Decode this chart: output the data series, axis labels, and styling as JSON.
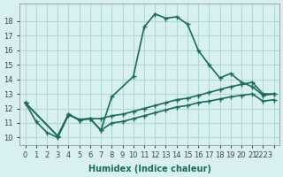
{
  "xlabel": "Humidex (Indice chaleur)",
  "ylabel": "",
  "bg_color": "#d8f0f0",
  "grid_color": "#b0d8d8",
  "line_color": "#1a6b5a",
  "yticks": [
    10,
    11,
    12,
    13,
    14,
    15,
    16,
    17,
    18
  ],
  "xtick_positions": [
    0,
    1,
    2,
    3,
    4,
    5,
    6,
    7,
    8,
    9,
    10,
    11,
    12,
    13,
    14,
    15,
    16,
    17,
    18,
    19,
    20,
    21,
    22,
    23
  ],
  "xtick_labels": [
    "0",
    "1",
    "2",
    "3",
    "4",
    "5",
    "6",
    "7",
    "8",
    "9",
    "10",
    "11",
    "12",
    "13",
    "14",
    "15",
    "16",
    "17",
    "18",
    "19",
    "20",
    "21",
    "2223",
    ""
  ],
  "line1_x": [
    0,
    1,
    2,
    3,
    4,
    5,
    6,
    7,
    8,
    10,
    11,
    12,
    13,
    14,
    15,
    16,
    17,
    18,
    19,
    20,
    21,
    22,
    23
  ],
  "line1_y": [
    12.4,
    11.1,
    10.35,
    10.0,
    11.55,
    11.25,
    11.3,
    10.5,
    12.8,
    14.2,
    17.6,
    18.5,
    18.2,
    18.3,
    17.8,
    16.0,
    15.0,
    14.1,
    14.4,
    13.8,
    13.5,
    12.9,
    13.0
  ],
  "line2_x": [
    0,
    3,
    4,
    5,
    6,
    7,
    8,
    9,
    10,
    11,
    12,
    13,
    14,
    15,
    16,
    17,
    18,
    19,
    20,
    21,
    22,
    23
  ],
  "line2_y": [
    12.4,
    10.1,
    11.6,
    11.2,
    11.3,
    11.3,
    11.5,
    11.6,
    11.8,
    12.0,
    12.2,
    12.4,
    12.6,
    12.7,
    12.9,
    13.1,
    13.3,
    13.5,
    13.65,
    13.8,
    13.0,
    13.0
  ],
  "line3_x": [
    0,
    3,
    4,
    5,
    6,
    7,
    8,
    9,
    10,
    11,
    12,
    13,
    14,
    15,
    16,
    17,
    18,
    19,
    20,
    21,
    22,
    23
  ],
  "line3_y": [
    12.4,
    10.1,
    11.6,
    11.2,
    11.3,
    10.5,
    11.0,
    11.1,
    11.3,
    11.5,
    11.7,
    11.9,
    12.1,
    12.2,
    12.4,
    12.5,
    12.65,
    12.8,
    12.9,
    13.0,
    12.5,
    12.6
  ]
}
